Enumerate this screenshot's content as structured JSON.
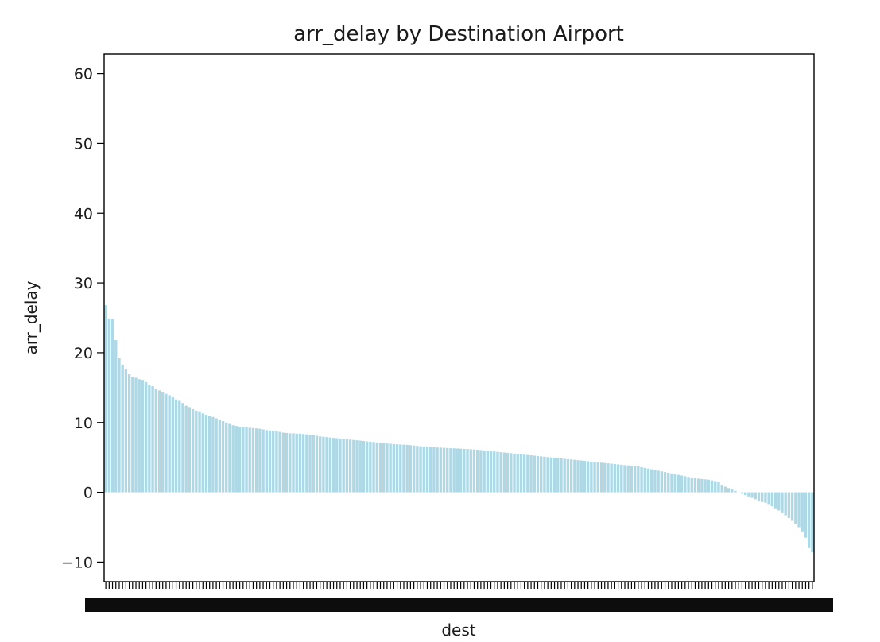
{
  "chart_data": {
    "type": "bar",
    "title": "arr_delay by Destination Airport",
    "xlabel": "dest",
    "ylabel": "arr_delay",
    "ylim": [
      -12.8,
      62.8
    ],
    "yticks": [
      -10,
      0,
      10,
      20,
      30,
      40,
      50,
      60
    ],
    "ytick_labels": [
      "−10",
      "0",
      "10",
      "20",
      "30",
      "40",
      "50",
      "60"
    ],
    "grid": false,
    "bar_color": "#add8e6",
    "categories_readable": false,
    "values": [
      26.8,
      24.9,
      24.8,
      21.8,
      19.2,
      18.3,
      17.6,
      16.9,
      16.5,
      16.4,
      16.2,
      16.1,
      15.8,
      15.4,
      15.2,
      14.8,
      14.6,
      14.4,
      14.1,
      13.9,
      13.6,
      13.3,
      13.1,
      12.8,
      12.4,
      12.2,
      11.9,
      11.7,
      11.6,
      11.3,
      11.1,
      10.9,
      10.8,
      10.6,
      10.4,
      10.2,
      10.0,
      9.8,
      9.6,
      9.5,
      9.4,
      9.35,
      9.3,
      9.25,
      9.2,
      9.15,
      9.1,
      9.0,
      8.9,
      8.85,
      8.8,
      8.75,
      8.65,
      8.55,
      8.5,
      8.45,
      8.45,
      8.4,
      8.4,
      8.35,
      8.3,
      8.25,
      8.2,
      8.1,
      8.0,
      7.95,
      7.9,
      7.85,
      7.8,
      7.75,
      7.7,
      7.65,
      7.6,
      7.55,
      7.5,
      7.45,
      7.4,
      7.35,
      7.3,
      7.25,
      7.2,
      7.15,
      7.1,
      7.05,
      7.0,
      6.95,
      6.9,
      6.88,
      6.85,
      6.82,
      6.8,
      6.75,
      6.7,
      6.65,
      6.6,
      6.55,
      6.5,
      6.48,
      6.45,
      6.42,
      6.4,
      6.37,
      6.35,
      6.32,
      6.3,
      6.27,
      6.25,
      6.22,
      6.2,
      6.17,
      6.15,
      6.1,
      6.05,
      6.0,
      5.95,
      5.9,
      5.85,
      5.8,
      5.75,
      5.7,
      5.65,
      5.6,
      5.55,
      5.5,
      5.45,
      5.4,
      5.35,
      5.3,
      5.25,
      5.2,
      5.15,
      5.1,
      5.05,
      5.0,
      4.95,
      4.9,
      4.85,
      4.8,
      4.75,
      4.7,
      4.65,
      4.6,
      4.55,
      4.5,
      4.45,
      4.4,
      4.35,
      4.3,
      4.25,
      4.2,
      4.15,
      4.1,
      4.05,
      4.0,
      3.95,
      3.9,
      3.85,
      3.8,
      3.75,
      3.7,
      3.6,
      3.5,
      3.4,
      3.3,
      3.2,
      3.1,
      3.0,
      2.9,
      2.8,
      2.7,
      2.6,
      2.5,
      2.4,
      2.3,
      2.2,
      2.1,
      2.0,
      1.95,
      1.9,
      1.85,
      1.8,
      1.7,
      1.6,
      1.5,
      1.0,
      0.8,
      0.6,
      0.4,
      0.2,
      0.0,
      -0.2,
      -0.4,
      -0.6,
      -0.8,
      -1.0,
      -1.2,
      -1.4,
      -1.5,
      -1.7,
      -2.0,
      -2.3,
      -2.6,
      -3.0,
      -3.3,
      -3.7,
      -4.1,
      -4.5,
      -5.0,
      -5.6,
      -6.5,
      -8.0,
      -8.6
    ]
  }
}
